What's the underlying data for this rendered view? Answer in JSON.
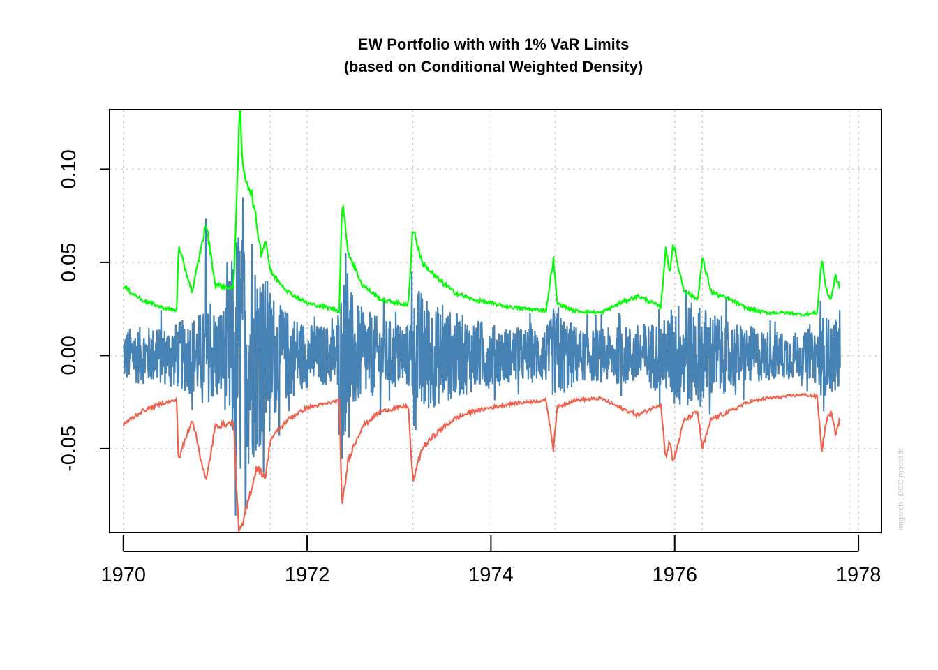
{
  "chart_data": {
    "type": "line",
    "title": [
      "EW Portfolio with with 1% VaR Limits",
      "(based on Conditional Weighted Density)"
    ],
    "xlabel": "",
    "ylabel": "",
    "xlim": [
      1969.85,
      1978.25
    ],
    "ylim": [
      -0.095,
      0.132
    ],
    "x_ticks": [
      1970,
      1972,
      1974,
      1976,
      1978
    ],
    "x_tick_labels": [
      "1970",
      "1972",
      "1974",
      "1976",
      "1978"
    ],
    "y_ticks": [
      -0.05,
      0.0,
      0.05,
      0.1
    ],
    "y_tick_labels": [
      "-0.05",
      "0.00",
      "0.05",
      "0.10"
    ],
    "grid": true,
    "x_range": [
      1970.0,
      1977.8
    ],
    "series": [
      {
        "role": "upper-var",
        "color": "#00ff00",
        "points": [
          [
            1970.0,
            0.037
          ],
          [
            1970.2,
            0.03
          ],
          [
            1970.4,
            0.026
          ],
          [
            1970.58,
            0.024
          ],
          [
            1970.6,
            0.058
          ],
          [
            1970.75,
            0.034
          ],
          [
            1970.9,
            0.071
          ],
          [
            1971.0,
            0.038
          ],
          [
            1971.2,
            0.036
          ],
          [
            1971.25,
            0.11
          ],
          [
            1971.27,
            0.133
          ],
          [
            1971.3,
            0.1
          ],
          [
            1971.4,
            0.086
          ],
          [
            1971.5,
            0.055
          ],
          [
            1971.55,
            0.062
          ],
          [
            1971.6,
            0.045
          ],
          [
            1971.8,
            0.034
          ],
          [
            1972.0,
            0.028
          ],
          [
            1972.2,
            0.026
          ],
          [
            1972.35,
            0.024
          ],
          [
            1972.38,
            0.083
          ],
          [
            1972.45,
            0.055
          ],
          [
            1972.6,
            0.038
          ],
          [
            1972.8,
            0.03
          ],
          [
            1973.0,
            0.028
          ],
          [
            1973.1,
            0.027
          ],
          [
            1973.15,
            0.069
          ],
          [
            1973.25,
            0.05
          ],
          [
            1973.4,
            0.042
          ],
          [
            1973.6,
            0.034
          ],
          [
            1973.8,
            0.03
          ],
          [
            1974.0,
            0.028
          ],
          [
            1974.2,
            0.026
          ],
          [
            1974.4,
            0.025
          ],
          [
            1974.6,
            0.024
          ],
          [
            1974.68,
            0.052
          ],
          [
            1974.72,
            0.028
          ],
          [
            1974.9,
            0.024
          ],
          [
            1975.2,
            0.023
          ],
          [
            1975.4,
            0.028
          ],
          [
            1975.6,
            0.032
          ],
          [
            1975.85,
            0.026
          ],
          [
            1975.9,
            0.057
          ],
          [
            1975.95,
            0.045
          ],
          [
            1975.98,
            0.06
          ],
          [
            1976.1,
            0.035
          ],
          [
            1976.25,
            0.03
          ],
          [
            1976.3,
            0.052
          ],
          [
            1976.4,
            0.034
          ],
          [
            1976.6,
            0.03
          ],
          [
            1976.8,
            0.025
          ],
          [
            1977.0,
            0.023
          ],
          [
            1977.2,
            0.023
          ],
          [
            1977.4,
            0.022
          ],
          [
            1977.55,
            0.023
          ],
          [
            1977.6,
            0.052
          ],
          [
            1977.65,
            0.035
          ],
          [
            1977.7,
            0.03
          ],
          [
            1977.75,
            0.043
          ],
          [
            1977.8,
            0.036
          ]
        ]
      },
      {
        "role": "lower-var",
        "color": "#f0624d",
        "points": [
          [
            1970.0,
            -0.037
          ],
          [
            1970.2,
            -0.03
          ],
          [
            1970.4,
            -0.026
          ],
          [
            1970.58,
            -0.024
          ],
          [
            1970.6,
            -0.056
          ],
          [
            1970.75,
            -0.034
          ],
          [
            1970.9,
            -0.068
          ],
          [
            1971.0,
            -0.038
          ],
          [
            1971.2,
            -0.036
          ],
          [
            1971.25,
            -0.09
          ],
          [
            1971.28,
            -0.095
          ],
          [
            1971.35,
            -0.08
          ],
          [
            1971.45,
            -0.06
          ],
          [
            1971.55,
            -0.065
          ],
          [
            1971.6,
            -0.045
          ],
          [
            1971.8,
            -0.034
          ],
          [
            1972.0,
            -0.028
          ],
          [
            1972.2,
            -0.026
          ],
          [
            1972.35,
            -0.024
          ],
          [
            1972.38,
            -0.082
          ],
          [
            1972.45,
            -0.055
          ],
          [
            1972.6,
            -0.038
          ],
          [
            1972.8,
            -0.03
          ],
          [
            1973.0,
            -0.028
          ],
          [
            1973.1,
            -0.027
          ],
          [
            1973.15,
            -0.068
          ],
          [
            1973.25,
            -0.05
          ],
          [
            1973.4,
            -0.042
          ],
          [
            1973.6,
            -0.034
          ],
          [
            1973.8,
            -0.03
          ],
          [
            1974.0,
            -0.028
          ],
          [
            1974.2,
            -0.026
          ],
          [
            1974.4,
            -0.025
          ],
          [
            1974.6,
            -0.024
          ],
          [
            1974.68,
            -0.05
          ],
          [
            1974.72,
            -0.028
          ],
          [
            1974.9,
            -0.024
          ],
          [
            1975.2,
            -0.023
          ],
          [
            1975.4,
            -0.028
          ],
          [
            1975.6,
            -0.032
          ],
          [
            1975.85,
            -0.026
          ],
          [
            1975.9,
            -0.055
          ],
          [
            1975.95,
            -0.045
          ],
          [
            1975.98,
            -0.058
          ],
          [
            1976.1,
            -0.035
          ],
          [
            1976.25,
            -0.03
          ],
          [
            1976.3,
            -0.05
          ],
          [
            1976.4,
            -0.034
          ],
          [
            1976.6,
            -0.03
          ],
          [
            1976.8,
            -0.025
          ],
          [
            1977.0,
            -0.023
          ],
          [
            1977.2,
            -0.022
          ],
          [
            1977.4,
            -0.021
          ],
          [
            1977.55,
            -0.022
          ],
          [
            1977.6,
            -0.051
          ],
          [
            1977.65,
            -0.035
          ],
          [
            1977.7,
            -0.03
          ],
          [
            1977.75,
            -0.042
          ],
          [
            1977.8,
            -0.034
          ]
        ]
      },
      {
        "role": "returns",
        "color": "#4682b4",
        "description_free": true,
        "amplitude_envelope": [
          [
            1970.0,
            0.012
          ],
          [
            1970.5,
            0.013
          ],
          [
            1970.9,
            0.02
          ],
          [
            1971.1,
            0.022
          ],
          [
            1971.25,
            0.06
          ],
          [
            1971.35,
            0.05
          ],
          [
            1971.55,
            0.035
          ],
          [
            1971.7,
            0.022
          ],
          [
            1972.0,
            0.014
          ],
          [
            1972.3,
            0.013
          ],
          [
            1972.4,
            0.035
          ],
          [
            1972.55,
            0.022
          ],
          [
            1972.8,
            0.016
          ],
          [
            1973.1,
            0.014
          ],
          [
            1973.2,
            0.03
          ],
          [
            1973.4,
            0.022
          ],
          [
            1973.8,
            0.016
          ],
          [
            1974.2,
            0.012
          ],
          [
            1974.6,
            0.012
          ],
          [
            1974.7,
            0.02
          ],
          [
            1975.0,
            0.011
          ],
          [
            1975.5,
            0.013
          ],
          [
            1975.9,
            0.016
          ],
          [
            1976.0,
            0.024
          ],
          [
            1976.3,
            0.022
          ],
          [
            1976.6,
            0.015
          ],
          [
            1977.0,
            0.011
          ],
          [
            1977.5,
            0.01
          ],
          [
            1977.6,
            0.018
          ],
          [
            1977.8,
            0.015
          ]
        ],
        "extremes": [
          [
            1970.9,
            0.073
          ],
          [
            1971.22,
            -0.086
          ],
          [
            1971.3,
            0.085
          ],
          [
            1971.33,
            -0.085
          ],
          [
            1971.4,
            0.06
          ],
          [
            1972.38,
            -0.055
          ],
          [
            1972.42,
            0.055
          ],
          [
            1973.14,
            0.045
          ],
          [
            1973.18,
            -0.04
          ],
          [
            1974.68,
            0.025
          ],
          [
            1976.12,
            0.035
          ],
          [
            1977.62,
            -0.03
          ]
        ]
      }
    ],
    "annotation": "rmgarch  :  DCC model fit"
  }
}
